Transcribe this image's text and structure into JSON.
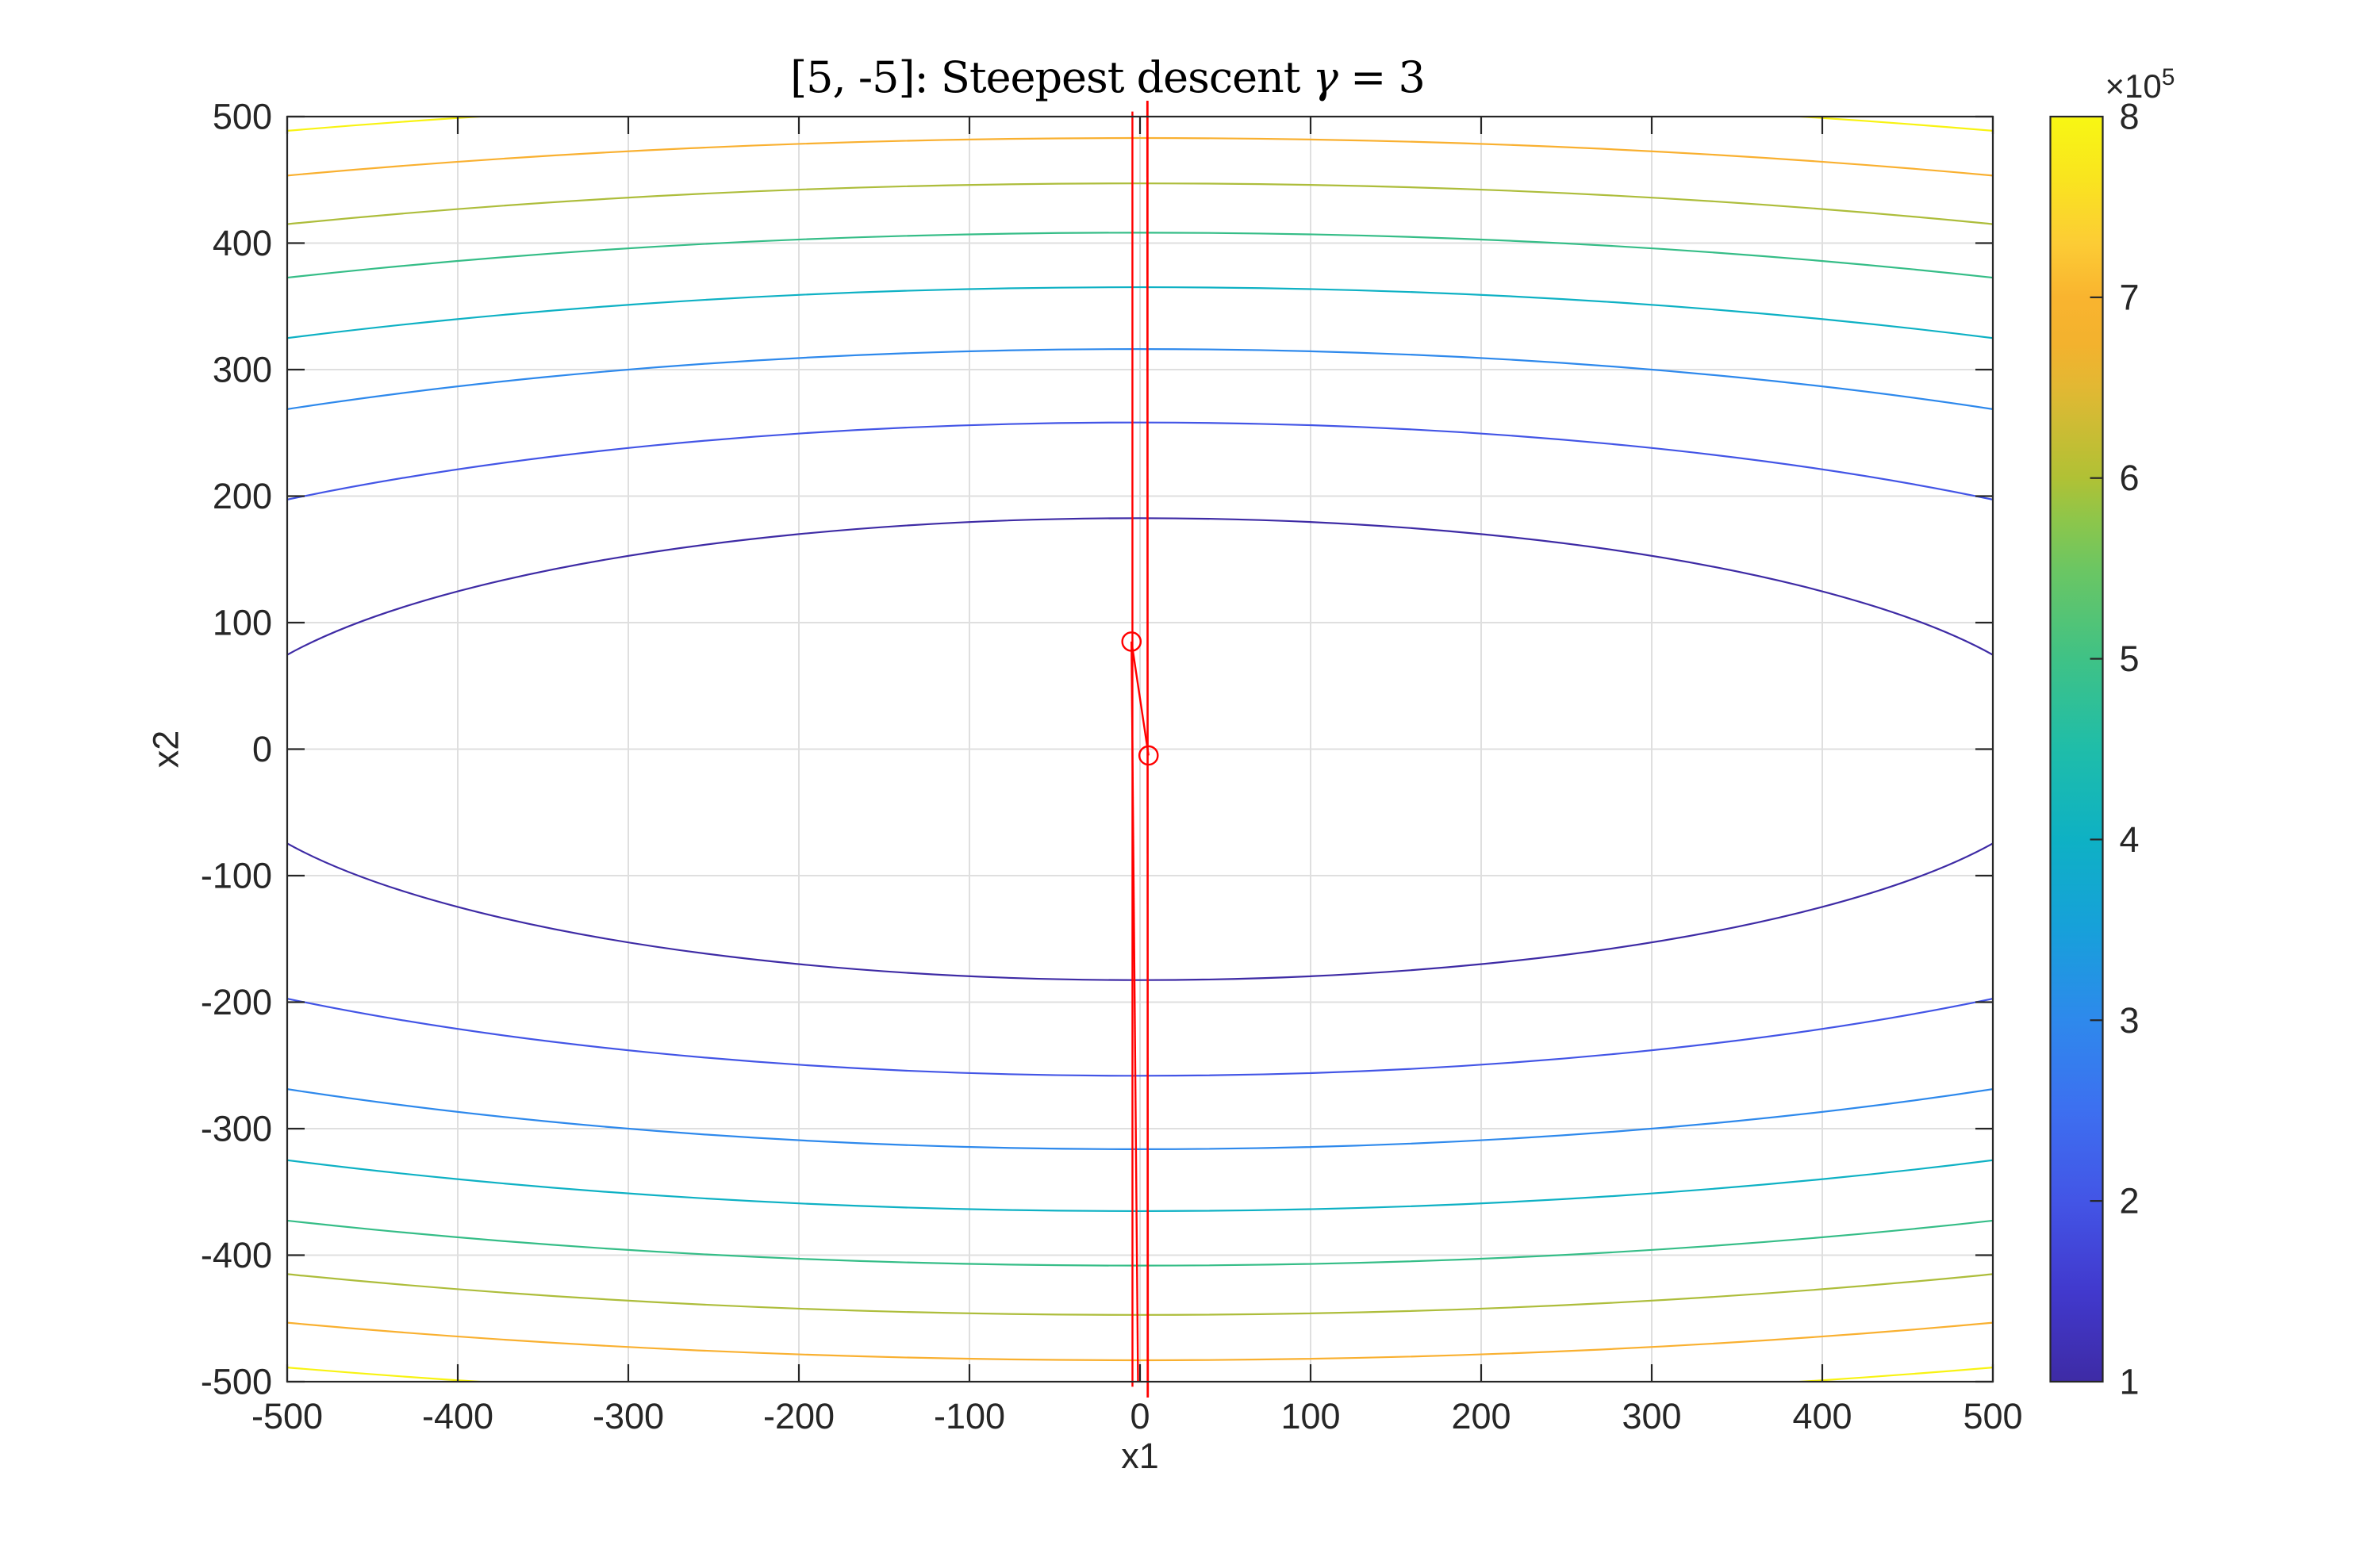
{
  "chart_data": {
    "type": "contour",
    "title": "[5, -5]: Steepest descent γ = 3",
    "title_parts": {
      "prefix": "[5, -5]: Steepest descent ",
      "gamma": "γ",
      "suffix": " = 3"
    },
    "xlabel": "x1",
    "ylabel": "x2",
    "xlim": [
      -500,
      500
    ],
    "ylim": [
      -500,
      500
    ],
    "grid": true,
    "background_color": "#ffffff",
    "axes_color": "#262626",
    "grid_color": "#dfdfdf",
    "xtick_values": [
      -500,
      -400,
      -300,
      -200,
      -100,
      0,
      100,
      200,
      300,
      400,
      500
    ],
    "xtick_labels": [
      "-500",
      "-400",
      "-300",
      "-200",
      "-100",
      "0",
      "100",
      "200",
      "300",
      "400",
      "500"
    ],
    "ytick_values": [
      -500,
      -400,
      -300,
      -200,
      -100,
      0,
      100,
      200,
      300,
      400,
      500
    ],
    "ytick_labels": [
      "-500",
      "-400",
      "-300",
      "-200",
      "-100",
      "0",
      "100",
      "200",
      "300",
      "400",
      "500"
    ],
    "contours": {
      "function_expression": "f(x1, x2) = x1^2/3 + 3*x2^2",
      "levels": [
        100000,
        200000,
        300000,
        400000,
        500000,
        600000,
        700000,
        800000
      ],
      "colors": [
        "#3e2ba5",
        "#4355e6",
        "#2e89ec",
        "#0eb1c4",
        "#35bd87",
        "#adbd3b",
        "#f9b030",
        "#f8f312"
      ],
      "ellipse_semi_axes": [
        {
          "level": 100000,
          "a": 547.72,
          "b": 182.57
        },
        {
          "level": 200000,
          "a": 774.6,
          "b": 258.2
        },
        {
          "level": 300000,
          "a": 948.68,
          "b": 316.23
        },
        {
          "level": 400000,
          "a": 1095.45,
          "b": 365.15
        },
        {
          "level": 500000,
          "a": 1224.74,
          "b": 408.25
        },
        {
          "level": 600000,
          "a": 1341.64,
          "b": 447.21
        },
        {
          "level": 700000,
          "a": 1449.14,
          "b": 483.05
        },
        {
          "level": 800000,
          "a": 1549.19,
          "b": 516.4
        }
      ]
    },
    "colorbar": {
      "orientation": "vertical",
      "tick_values": [
        1,
        2,
        3,
        4,
        5,
        6,
        7,
        8
      ],
      "tick_labels": [
        "1",
        "2",
        "3",
        "4",
        "5",
        "6",
        "7",
        "8"
      ],
      "scale_base": "×10",
      "scale_exponent": "5",
      "gradient_stops": [
        {
          "t": 0.0,
          "color": "#3e2ba5"
        },
        {
          "t": 0.071,
          "color": "#4139cd"
        },
        {
          "t": 0.143,
          "color": "#4355e6"
        },
        {
          "t": 0.214,
          "color": "#3d6ff0"
        },
        {
          "t": 0.286,
          "color": "#2e89ec"
        },
        {
          "t": 0.357,
          "color": "#17a0da"
        },
        {
          "t": 0.429,
          "color": "#0eb1c4"
        },
        {
          "t": 0.5,
          "color": "#1fbda9"
        },
        {
          "t": 0.571,
          "color": "#3fc286"
        },
        {
          "t": 0.643,
          "color": "#6cc662"
        },
        {
          "t": 0.68,
          "color": "#8cc64b"
        },
        {
          "t": 0.714,
          "color": "#b0c135"
        },
        {
          "t": 0.786,
          "color": "#e2b833"
        },
        {
          "t": 0.82,
          "color": "#f3b22e"
        },
        {
          "t": 0.857,
          "color": "#f9b42f"
        },
        {
          "t": 0.9,
          "color": "#fccc35"
        },
        {
          "t": 0.95,
          "color": "#f9e41f"
        },
        {
          "t": 1.0,
          "color": "#f8f713"
        }
      ]
    },
    "trajectory": {
      "color": "#ff0000",
      "marker_style": "circle",
      "start_point": [
        5,
        -5
      ],
      "marker_points": [
        [
          5,
          -5
        ],
        [
          -5,
          85
        ]
      ],
      "segments": [
        [
          [
            5,
            -5
          ],
          [
            -5,
            85
          ]
        ],
        [
          [
            -5,
            85
          ],
          [
            -1.17,
            -500.5
          ]
        ],
        [
          [
            4.64,
            -512.5
          ],
          [
            4.25,
            512.5
          ]
        ],
        [
          [
            -4.46,
            504
          ],
          [
            -4.43,
            -504
          ]
        ],
        [
          [
            4.445,
            -512.5
          ],
          [
            4.443,
            512.5
          ]
        ]
      ]
    }
  }
}
